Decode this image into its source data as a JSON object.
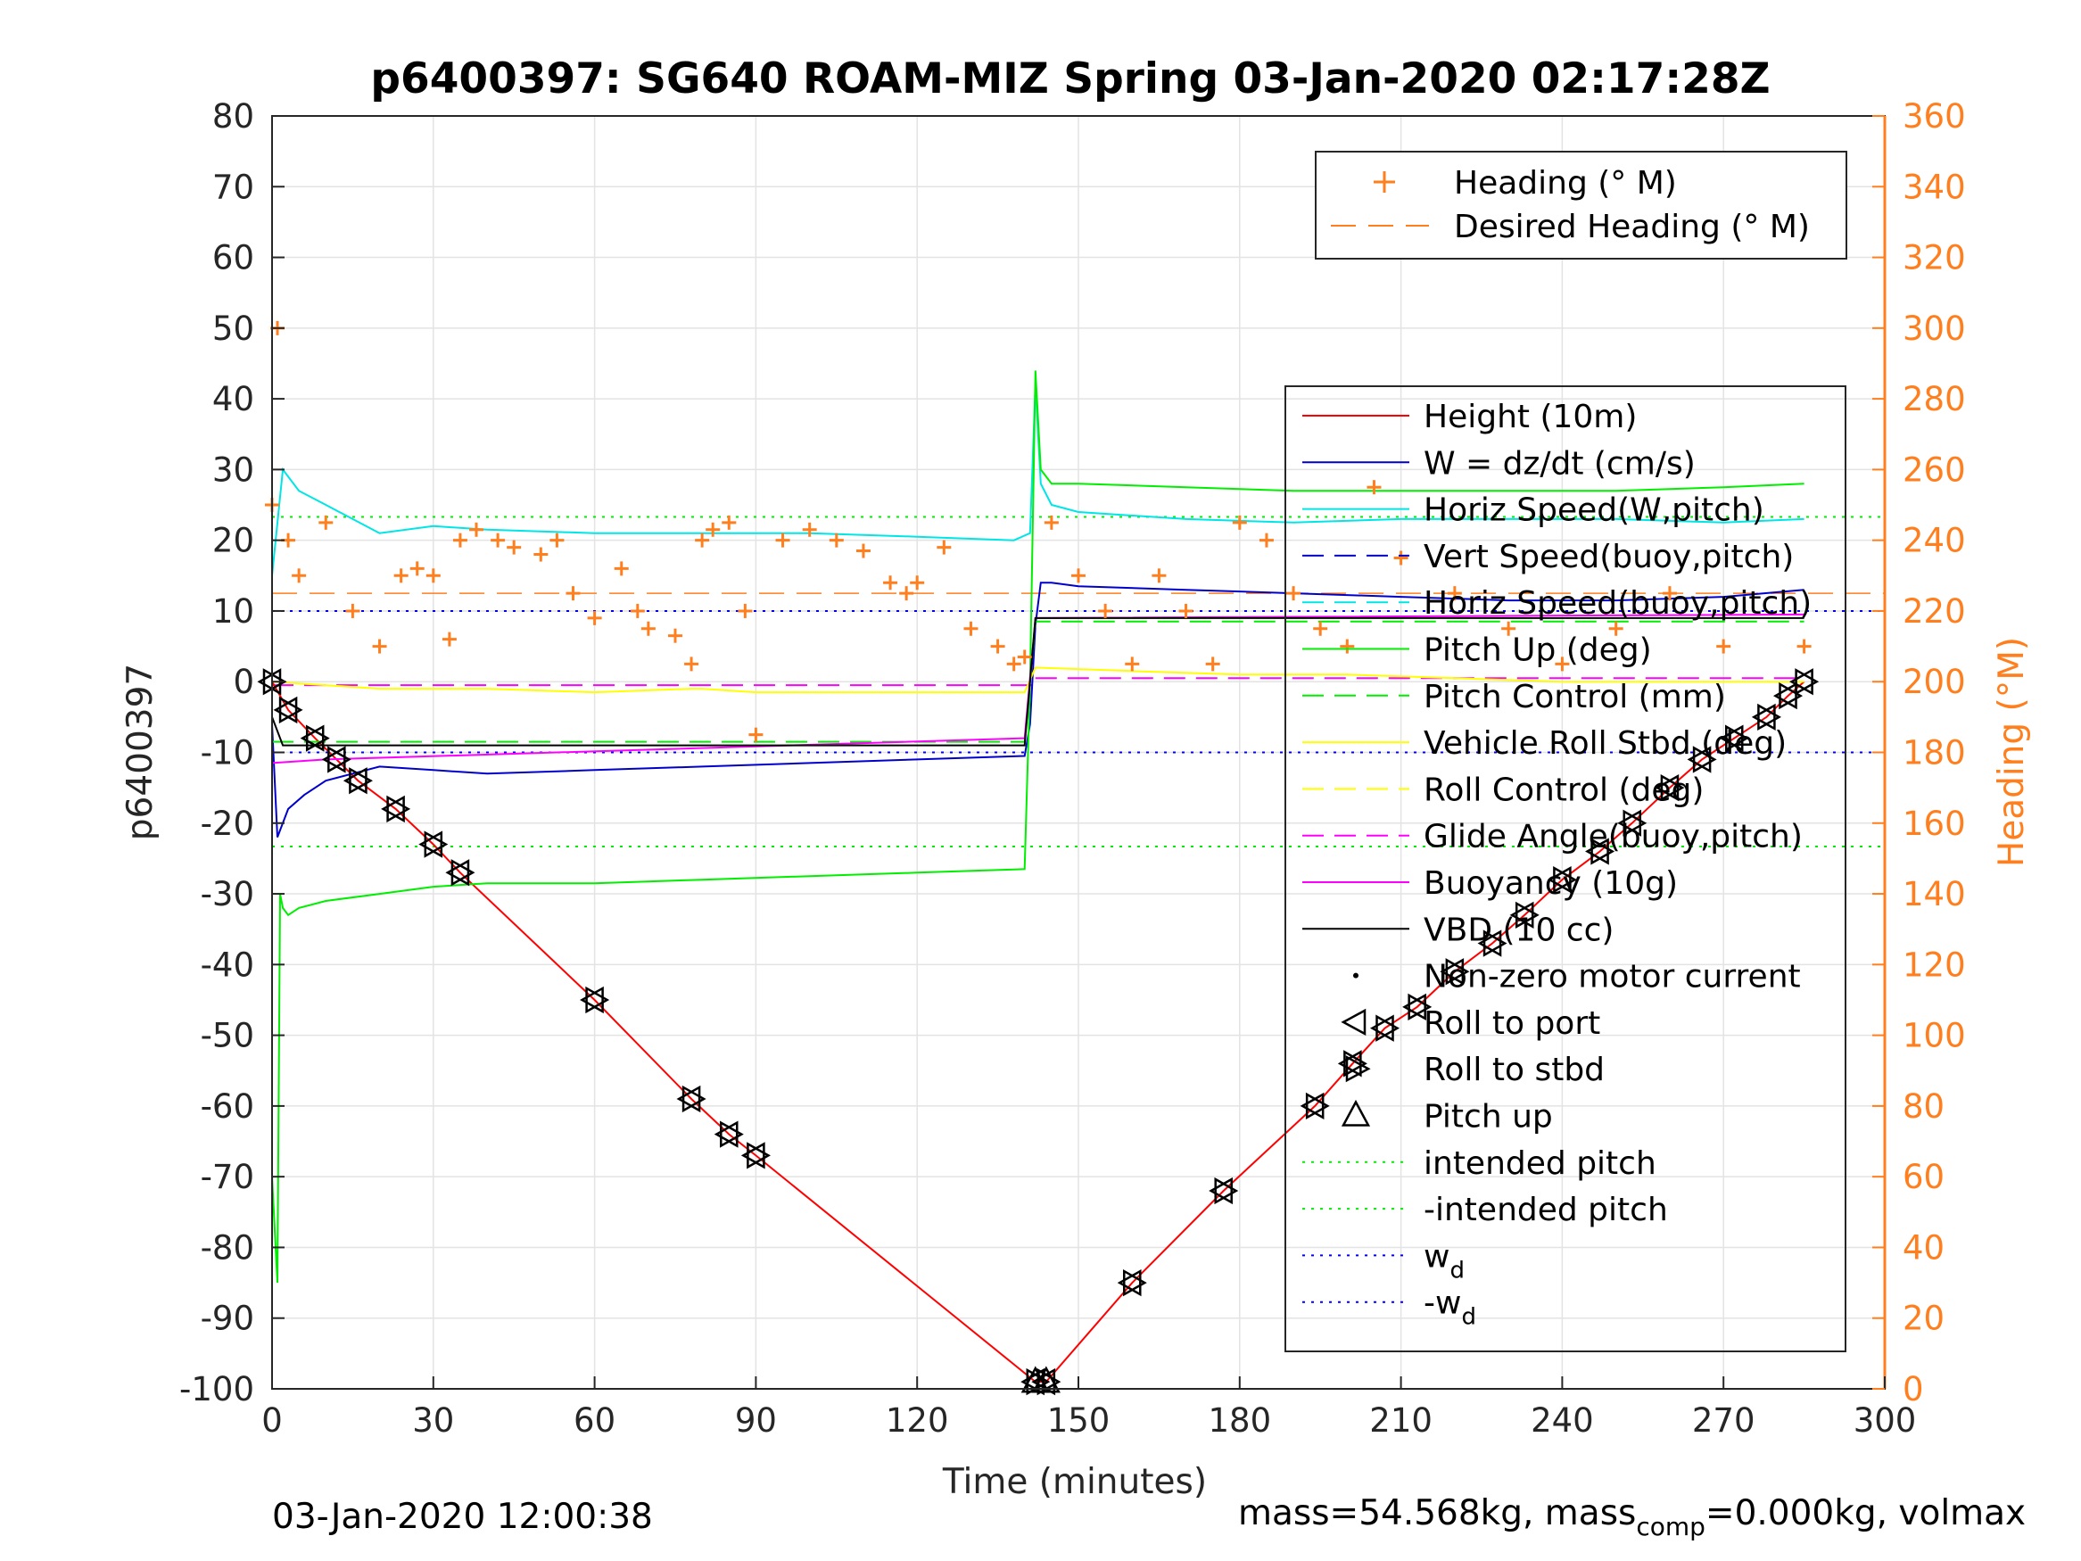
{
  "chart_data": {
    "type": "line",
    "title": "p6400397: SG640 ROAM-MIZ Spring 03-Jan-2020 02:17:28Z",
    "xlabel": "Time (minutes)",
    "ylabel_left": "p6400397",
    "ylabel_right": "Heading (°M)",
    "xlim": [
      0,
      300
    ],
    "ylim_left": [
      -100,
      80
    ],
    "ylim_right": [
      0,
      360
    ],
    "xticks": [
      0,
      30,
      60,
      90,
      120,
      150,
      180,
      210,
      240,
      270,
      300
    ],
    "yticks_left": [
      80,
      70,
      60,
      50,
      40,
      30,
      20,
      10,
      0,
      -10,
      -20,
      -30,
      -40,
      -50,
      -60,
      -70,
      -80,
      -90,
      -100
    ],
    "yticks_right": [
      360,
      340,
      320,
      300,
      280,
      260,
      240,
      220,
      200,
      180,
      160,
      140,
      120,
      100,
      80,
      60,
      40,
      20,
      0
    ],
    "grid": true,
    "legend_heading": {
      "placement": "top-right",
      "entries": [
        "Heading (° M)",
        "Desired Heading (° M)"
      ]
    },
    "legend_main": {
      "placement": "right",
      "entries": [
        {
          "label": "Height (10m)",
          "color": "#ff0000",
          "style": "solid"
        },
        {
          "label": "W = dz/dt (cm/s)",
          "color": "#0000cc",
          "style": "solid"
        },
        {
          "label": "Horiz Speed(W,pitch)",
          "color": "#00e5e5",
          "style": "solid"
        },
        {
          "label": "Vert Speed(buoy,pitch)",
          "color": "#0000cc",
          "style": "dashed"
        },
        {
          "label": "Horiz Speed(buoy,pitch)",
          "color": "#00e5e5",
          "style": "dashed"
        },
        {
          "label": "Pitch Up (deg)",
          "color": "#00ee00",
          "style": "solid"
        },
        {
          "label": "Pitch Control (mm)",
          "color": "#00ee00",
          "style": "dashed"
        },
        {
          "label": "Vehicle Roll Stbd (deg)",
          "color": "#ffff00",
          "style": "solid"
        },
        {
          "label": "Roll Control (deg)",
          "color": "#ffff00",
          "style": "dashed"
        },
        {
          "label": "Glide Angle(buoy,pitch)",
          "color": "#ff00ff",
          "style": "dashed"
        },
        {
          "label": "Buoyancy (10g)",
          "color": "#ff00ff",
          "style": "solid"
        },
        {
          "label": "VBD (10 cc)",
          "color": "#000000",
          "style": "solid"
        },
        {
          "label": "Non-zero motor current",
          "color": "#000000",
          "style": "dot"
        },
        {
          "label": "Roll to port",
          "color": "#000000",
          "style": "triangle-left"
        },
        {
          "label": "Roll to stbd",
          "color": "#000000",
          "style": "triangle-right"
        },
        {
          "label": "Pitch up",
          "color": "#000000",
          "style": "triangle-up"
        },
        {
          "label": "intended pitch",
          "color": "#00ee00",
          "style": "dotted"
        },
        {
          "label": "-intended pitch",
          "color": "#00ee00",
          "style": "dotted"
        },
        {
          "label": "w",
          "sub": "d",
          "color": "#0000ff",
          "style": "dotted"
        },
        {
          "label": "-w",
          "sub": "d",
          "color": "#0000ff",
          "style": "dotted"
        }
      ]
    },
    "reference_lines": {
      "intended_pitch": 23.3,
      "neg_intended_pitch": -23.3,
      "w_d": 10,
      "neg_w_d": -10,
      "desired_heading_deg": 225,
      "glide_angle_dive": -0.5,
      "glide_angle_climb": 0.5
    },
    "series": [
      {
        "name": "Height (10m)",
        "color": "#ff0000",
        "x": [
          0,
          3,
          8,
          12,
          16,
          23,
          30,
          35,
          60,
          78,
          85,
          90,
          142,
          144,
          160,
          177,
          194,
          201,
          207,
          213,
          220,
          227,
          233,
          240,
          247,
          253,
          260,
          266,
          272,
          278,
          282,
          285
        ],
        "y": [
          0,
          -4,
          -8,
          -11,
          -14,
          -18,
          -23,
          -27,
          -45,
          -59,
          -64,
          -67,
          -99,
          -99,
          -85,
          -72,
          -60,
          -54,
          -49,
          -46,
          -41,
          -37,
          -33,
          -28,
          -24,
          -20,
          -15,
          -11,
          -8,
          -5,
          -2,
          0
        ]
      },
      {
        "name": "W = dz/dt (cm/s)",
        "color": "#0000cc",
        "x": [
          0,
          1,
          3,
          6,
          10,
          15,
          20,
          30,
          40,
          60,
          80,
          100,
          120,
          140,
          141,
          142,
          143,
          145,
          150,
          170,
          190,
          210,
          230,
          250,
          270,
          285
        ],
        "y": [
          -6,
          -22,
          -18,
          -16,
          -14,
          -13,
          -12,
          -12.5,
          -13,
          -12.5,
          -12,
          -11.5,
          -11,
          -10.5,
          -6,
          8,
          14,
          14,
          13.5,
          13,
          12.5,
          12,
          11.5,
          11.5,
          12,
          13
        ]
      },
      {
        "name": "Horiz Speed(W,pitch)",
        "color": "#00e5e5",
        "x": [
          0,
          2,
          5,
          10,
          15,
          20,
          30,
          40,
          60,
          80,
          100,
          120,
          138,
          141,
          142,
          143,
          145,
          150,
          170,
          190,
          210,
          230,
          250,
          270,
          285
        ],
        "y": [
          15,
          30,
          27,
          25,
          23,
          21,
          22,
          21.5,
          21,
          21,
          21,
          20.5,
          20,
          21,
          42,
          28,
          25,
          24,
          23,
          22.5,
          23,
          23,
          23,
          22.5,
          23
        ]
      },
      {
        "name": "Pitch Up (deg)",
        "color": "#00ee00",
        "x": [
          0,
          1,
          1.5,
          2,
          3,
          5,
          10,
          20,
          30,
          40,
          60,
          80,
          100,
          120,
          140,
          141,
          142,
          143,
          145,
          150,
          170,
          190,
          210,
          230,
          250,
          270,
          285
        ],
        "y": [
          -70,
          -85,
          -30,
          -32,
          -33,
          -32,
          -31,
          -30,
          -29,
          -28.5,
          -28.5,
          -28,
          -27.5,
          -27,
          -26.5,
          0,
          44,
          30,
          28,
          28,
          27.5,
          27,
          27,
          27,
          27,
          27.5,
          28
        ]
      },
      {
        "name": "Pitch Control (mm)",
        "color": "#00ee00",
        "style": "dashed",
        "x": [
          0,
          140,
          142,
          285
        ],
        "y": [
          -8.5,
          -8.5,
          8.5,
          8.5
        ]
      },
      {
        "name": "Vehicle Roll Stbd (deg)",
        "color": "#ffff00",
        "x": [
          0,
          20,
          40,
          60,
          78,
          80,
          90,
          100,
          120,
          140,
          142,
          160,
          180,
          200,
          220,
          240,
          260,
          280,
          285
        ],
        "y": [
          0,
          -1,
          -1,
          -1.5,
          -1,
          -1,
          -1.5,
          -1.5,
          -1.5,
          -1.5,
          2,
          1.5,
          1,
          1,
          0.5,
          0,
          0,
          0,
          0
        ]
      },
      {
        "name": "Buoyancy (10g)",
        "color": "#ff00ff",
        "x": [
          0,
          10,
          140,
          142,
          285
        ],
        "y": [
          -11.5,
          -11,
          -8,
          9,
          9.5
        ]
      },
      {
        "name": "VBD (10 cc)",
        "color": "#000000",
        "x": [
          0,
          2,
          140,
          142,
          285
        ],
        "y": [
          -5,
          -9,
          -9,
          9,
          9
        ]
      },
      {
        "name": "Heading (° M)",
        "color": "#ff7f1e",
        "axis": "right",
        "marker": "+",
        "x": [
          0,
          1,
          3,
          5,
          10,
          15,
          20,
          24,
          27,
          30,
          33,
          35,
          38,
          42,
          45,
          50,
          53,
          56,
          60,
          65,
          68,
          70,
          75,
          78,
          80,
          82,
          85,
          88,
          90,
          95,
          100,
          105,
          110,
          115,
          118,
          120,
          125,
          130,
          135,
          138,
          140,
          145,
          150,
          155,
          160,
          165,
          170,
          175,
          180,
          185,
          190,
          195,
          200,
          205,
          210,
          220,
          230,
          240,
          250,
          260,
          270,
          285
        ],
        "y": [
          250,
          300,
          240,
          230,
          245,
          220,
          210,
          230,
          232,
          230,
          212,
          240,
          243,
          240,
          238,
          236,
          240,
          225,
          218,
          232,
          220,
          215,
          213,
          205,
          240,
          243,
          245,
          220,
          185,
          240,
          243,
          240,
          237,
          228,
          225,
          228,
          238,
          215,
          210,
          205,
          207,
          245,
          230,
          220,
          205,
          230,
          220,
          205,
          245,
          240,
          225,
          215,
          210,
          255,
          235,
          225,
          215,
          205,
          215,
          225,
          210,
          210
        ]
      }
    ]
  },
  "footer": {
    "left": "03-Jan-2020 12:00:38",
    "right_part1": "mass=54.568kg, mass",
    "right_sub": "comp",
    "right_part2": "=0.000kg, volmax"
  }
}
